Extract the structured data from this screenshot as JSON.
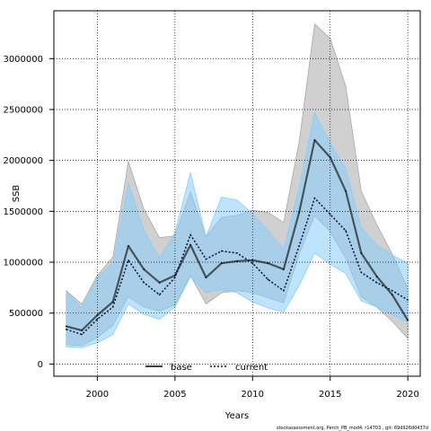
{
  "chart_data": {
    "type": "area",
    "xlabel": "Years",
    "ylabel": "SSB",
    "xlim": [
      1997.2,
      2020.8
    ],
    "ylim": [
      -120000,
      3470000
    ],
    "x_ticks": [
      2000,
      2005,
      2010,
      2015,
      2020
    ],
    "y_ticks": [
      0,
      500000,
      1000000,
      1500000,
      2000000,
      2500000,
      3000000
    ],
    "grid": true,
    "legend_position": "bottom-center",
    "x": [
      1998,
      1999,
      2000,
      2001,
      2002,
      2003,
      2004,
      2005,
      2006,
      2007,
      2008,
      2009,
      2010,
      2011,
      2012,
      2013,
      2014,
      2015,
      2016,
      2017,
      2018,
      2019,
      2020
    ],
    "series": [
      {
        "name": "base",
        "color": "#000000",
        "band_color": "#a9a9a9",
        "line_style": "solid",
        "values": [
          370000,
          330000,
          480000,
          610000,
          1160000,
          930000,
          800000,
          870000,
          1170000,
          850000,
          990000,
          1010000,
          1020000,
          990000,
          930000,
          1490000,
          2200000,
          2030000,
          1700000,
          1090000,
          860000,
          680000,
          430000
        ],
        "lower": [
          190000,
          180000,
          260000,
          380000,
          660000,
          560000,
          520000,
          580000,
          870000,
          590000,
          700000,
          720000,
          700000,
          650000,
          600000,
          1080000,
          1460000,
          1300000,
          1040000,
          660000,
          560000,
          420000,
          250000
        ],
        "upper": [
          720000,
          590000,
          870000,
          1050000,
          1990000,
          1520000,
          1240000,
          1260000,
          1690000,
          1250000,
          1440000,
          1460000,
          1510000,
          1490000,
          1390000,
          2180000,
          3340000,
          3200000,
          2730000,
          1700000,
          1370000,
          1080000,
          740000
        ]
      },
      {
        "name": "current",
        "color": "#0a0a3a",
        "band_color": "#87cefa",
        "line_style": "dotted",
        "values": [
          340000,
          290000,
          440000,
          560000,
          1020000,
          800000,
          680000,
          850000,
          1270000,
          1030000,
          1110000,
          1090000,
          990000,
          830000,
          720000,
          1160000,
          1630000,
          1470000,
          1310000,
          900000,
          800000,
          720000,
          630000
        ],
        "lower": [
          170000,
          160000,
          210000,
          290000,
          590000,
          490000,
          440000,
          560000,
          860000,
          700000,
          730000,
          700000,
          610000,
          550000,
          510000,
          770000,
          1090000,
          980000,
          890000,
          620000,
          560000,
          480000,
          410000
        ],
        "upper": [
          710000,
          550000,
          850000,
          990000,
          1780000,
          1320000,
          1040000,
          1290000,
          1880000,
          1250000,
          1640000,
          1610000,
          1480000,
          1310000,
          1130000,
          1730000,
          2470000,
          2170000,
          1920000,
          1340000,
          1170000,
          1070000,
          990000
        ]
      }
    ]
  },
  "footer": "stockassessment.org, Perch_PB_mod4, r14703 , git: 69d926d0437d"
}
